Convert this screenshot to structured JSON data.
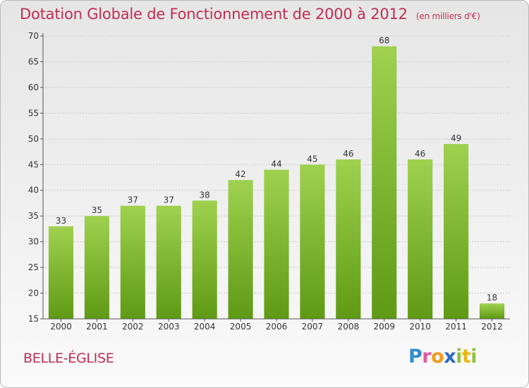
{
  "header": {
    "title": "Dotation Globale de Fonctionnement de 2000 à 2012",
    "unit": "(en milliers d'€)"
  },
  "footer": {
    "commune": "BELLE-ÉGLISE",
    "logo_text": "Proxiti"
  },
  "colors": {
    "bar_top": "#9fd14f",
    "bar_bottom": "#5f9a14",
    "text_accent": "#c12d52"
  },
  "chart_data": {
    "type": "bar",
    "title": "Dotation Globale de Fonctionnement de 2000 à 2012",
    "subtitle": "(en milliers d'€)",
    "xlabel": "",
    "ylabel": "",
    "categories": [
      "2000",
      "2001",
      "2002",
      "2003",
      "2004",
      "2005",
      "2006",
      "2007",
      "2008",
      "2009",
      "2010",
      "2011",
      "2012"
    ],
    "values": [
      33,
      35,
      37,
      37,
      38,
      42,
      44,
      45,
      46,
      68,
      46,
      49,
      18
    ],
    "ylim": [
      15,
      70
    ],
    "yticks": [
      15,
      20,
      25,
      30,
      35,
      40,
      45,
      50,
      55,
      60,
      65,
      70
    ],
    "grid": true,
    "legend": "none"
  }
}
